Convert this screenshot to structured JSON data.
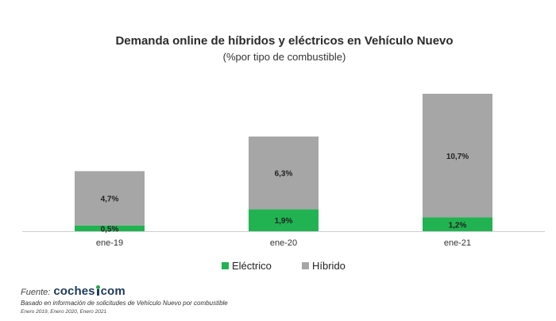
{
  "chart_data": {
    "type": "bar",
    "stacked": true,
    "title": "Demanda online de híbridos y eléctricos en Vehículo Nuevo",
    "subtitle": "(%por tipo de combustible)",
    "categories": [
      "ene-19",
      "ene-20",
      "ene-21"
    ],
    "series": [
      {
        "name": "Eléctrico",
        "values": [
          0.5,
          1.9,
          1.2
        ],
        "labels": [
          "0,5%",
          "1,9%",
          "1,2%"
        ],
        "color": "#21b351"
      },
      {
        "name": "Híbrido",
        "values": [
          4.7,
          6.3,
          10.7
        ],
        "labels": [
          "4,7%",
          "6,3%",
          "10,7%"
        ],
        "color": "#a6a6a6"
      }
    ],
    "ylim": [
      0,
      12
    ],
    "grid": false,
    "legend": "bottom"
  },
  "footer": {
    "source_label": "Fuente:",
    "logo_left": "coches",
    "logo_right": "com",
    "note": "Basado en información de solicitudes de Vehículo Nuevo por combustible",
    "dates": "Enero 2019, Enero 2020, Enero 2021"
  },
  "colors": {
    "axis": "#d0d0d0",
    "logo_navy": "#1f3a57",
    "logo_green": "#2aa64a"
  }
}
